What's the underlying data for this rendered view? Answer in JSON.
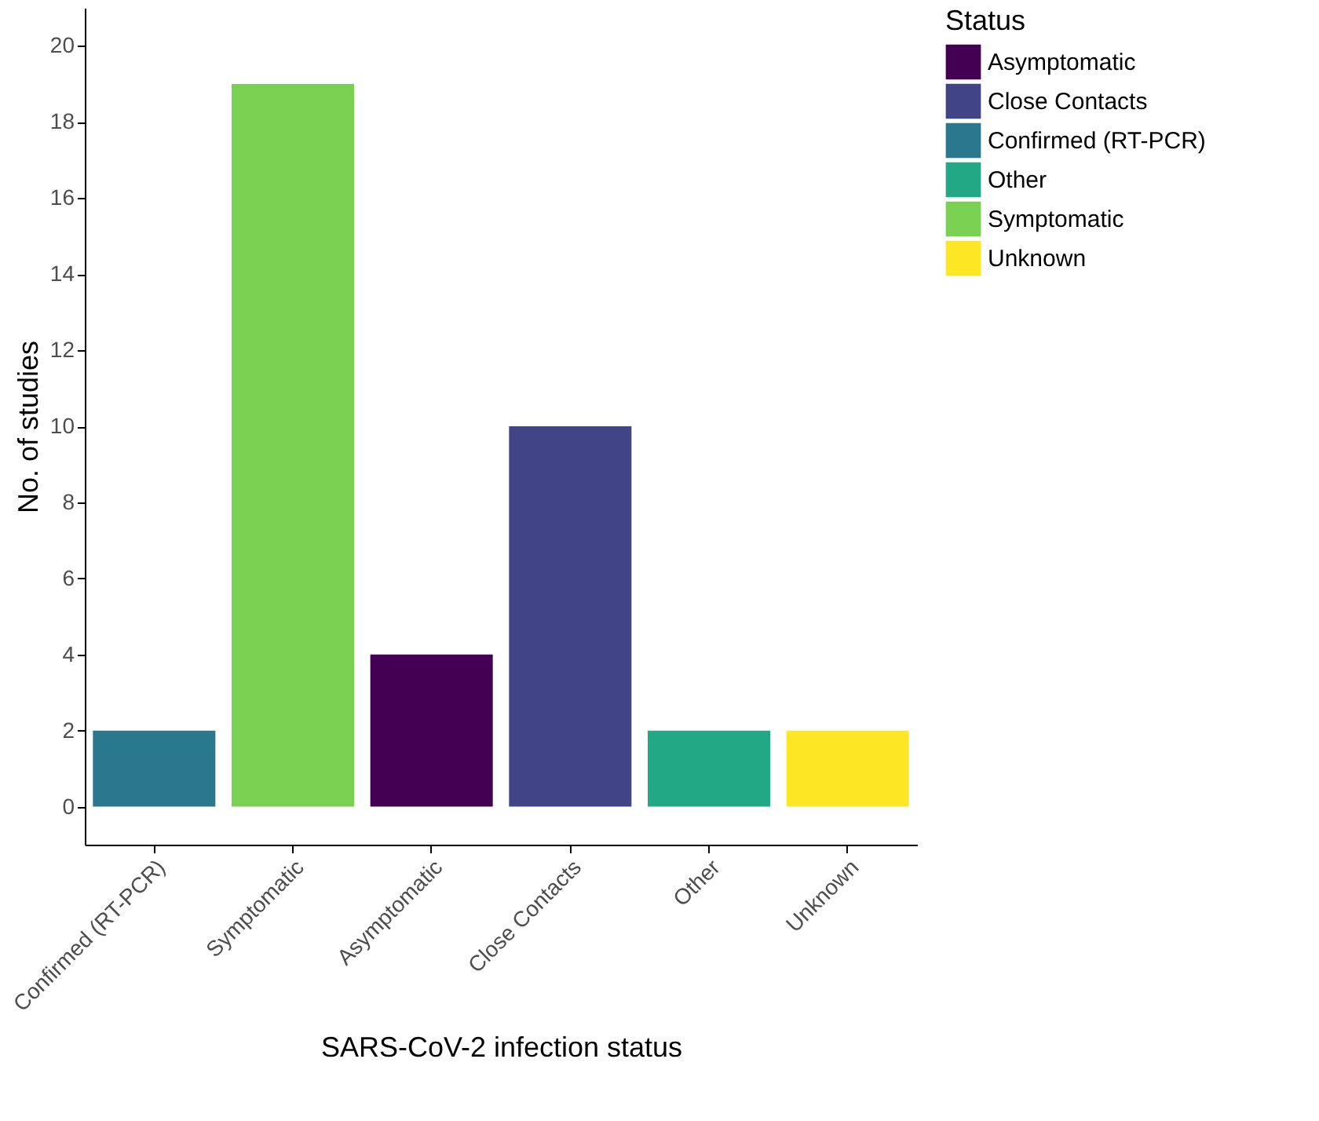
{
  "chart_data": {
    "type": "bar",
    "categories": [
      "Confirmed (RT-PCR)",
      "Symptomatic",
      "Asymptomatic",
      "Close Contacts",
      "Other",
      "Unknown"
    ],
    "series": [
      {
        "name": "Asymptomatic",
        "color": "#440154",
        "values": [
          null,
          null,
          4,
          null,
          null,
          null
        ]
      },
      {
        "name": "Close Contacts",
        "color": "#414487",
        "values": [
          null,
          null,
          null,
          10,
          null,
          null
        ]
      },
      {
        "name": "Confirmed (RT-PCR)",
        "color": "#2a788e",
        "values": [
          2,
          null,
          null,
          null,
          null,
          null
        ]
      },
      {
        "name": "Other",
        "color": "#22a884",
        "values": [
          null,
          null,
          null,
          null,
          2,
          null
        ]
      },
      {
        "name": "Symptomatic",
        "color": "#7ad151",
        "values": [
          null,
          19,
          null,
          null,
          null,
          null
        ]
      },
      {
        "name": "Unknown",
        "color": "#fde725",
        "values": [
          null,
          null,
          null,
          null,
          null,
          2
        ]
      }
    ],
    "xlabel": "SARS-CoV-2 infection status",
    "ylabel": "No. of studies",
    "legend_title": "Status",
    "ylim": [
      -1,
      21
    ],
    "yticks": [
      0,
      2,
      4,
      6,
      8,
      10,
      12,
      14,
      16,
      18,
      20
    ],
    "grid": false,
    "legend": "right"
  }
}
